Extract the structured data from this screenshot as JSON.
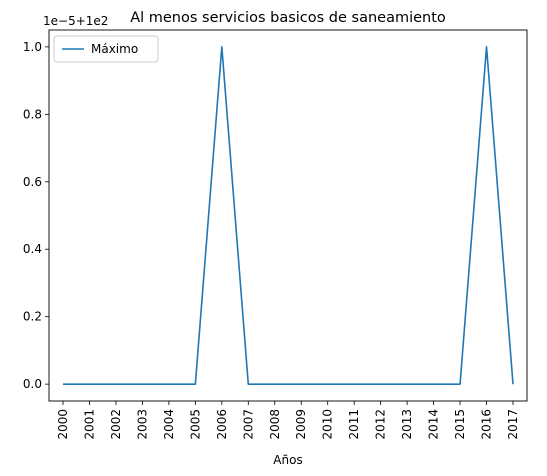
{
  "chart_data": {
    "type": "line",
    "title": "Al menos servicios basicos de saneamiento",
    "xlabel": "Años",
    "ylabel": "",
    "offset_text": "1e−5+1e2",
    "x": [
      "2000",
      "2001",
      "2002",
      "2003",
      "2004",
      "2005",
      "2006",
      "2007",
      "2008",
      "2009",
      "2010",
      "2011",
      "2012",
      "2013",
      "2014",
      "2015",
      "2016",
      "2017"
    ],
    "series": [
      {
        "name": "Máximo",
        "color": "#1f77b4",
        "values": [
          0.0,
          0.0,
          0.0,
          0.0,
          0.0,
          0.0,
          1.0,
          0.0,
          0.0,
          0.0,
          0.0,
          0.0,
          0.0,
          0.0,
          0.0,
          0.0,
          1.0,
          0.0
        ]
      }
    ],
    "ylim": [
      -0.05,
      1.05
    ],
    "yticks": [
      0.0,
      0.2,
      0.4,
      0.6,
      0.8,
      1.0
    ],
    "ytick_labels": [
      "0.0",
      "0.2",
      "0.4",
      "0.6",
      "0.8",
      "1.0"
    ],
    "legend_position": "top-left",
    "grid": false
  }
}
